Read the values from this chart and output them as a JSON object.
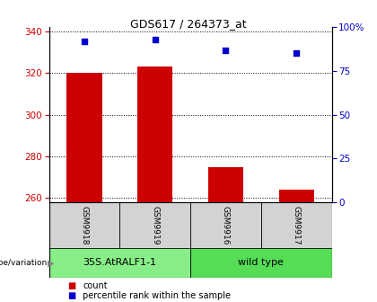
{
  "title": "GDS617 / 264373_at",
  "samples": [
    "GSM9918",
    "GSM9919",
    "GSM9916",
    "GSM9917"
  ],
  "bar_values": [
    320,
    323,
    275,
    264
  ],
  "percentile_pct": [
    92,
    93,
    87,
    85
  ],
  "ylim_left": [
    258,
    342
  ],
  "yticks_left": [
    260,
    280,
    300,
    320,
    340
  ],
  "ylim_right": [
    0,
    100
  ],
  "yticks_right": [
    0,
    25,
    50,
    75,
    100
  ],
  "bar_color": "#cc0000",
  "dot_color": "#0000cc",
  "groups": [
    {
      "label": "35S.AtRALF1-1",
      "indices": [
        0,
        1
      ],
      "color": "#88ee88"
    },
    {
      "label": "wild type",
      "indices": [
        2,
        3
      ],
      "color": "#55dd55"
    }
  ],
  "group_label": "genotype/variation",
  "legend_count_label": "count",
  "legend_pct_label": "percentile rank within the sample",
  "bar_width": 0.5,
  "tick_color_left": "#cc0000",
  "tick_color_right": "#0000cc",
  "title_fontsize": 9,
  "tick_fontsize": 7.5,
  "sample_fontsize": 6.5,
  "group_fontsize": 8,
  "legend_fontsize": 7
}
